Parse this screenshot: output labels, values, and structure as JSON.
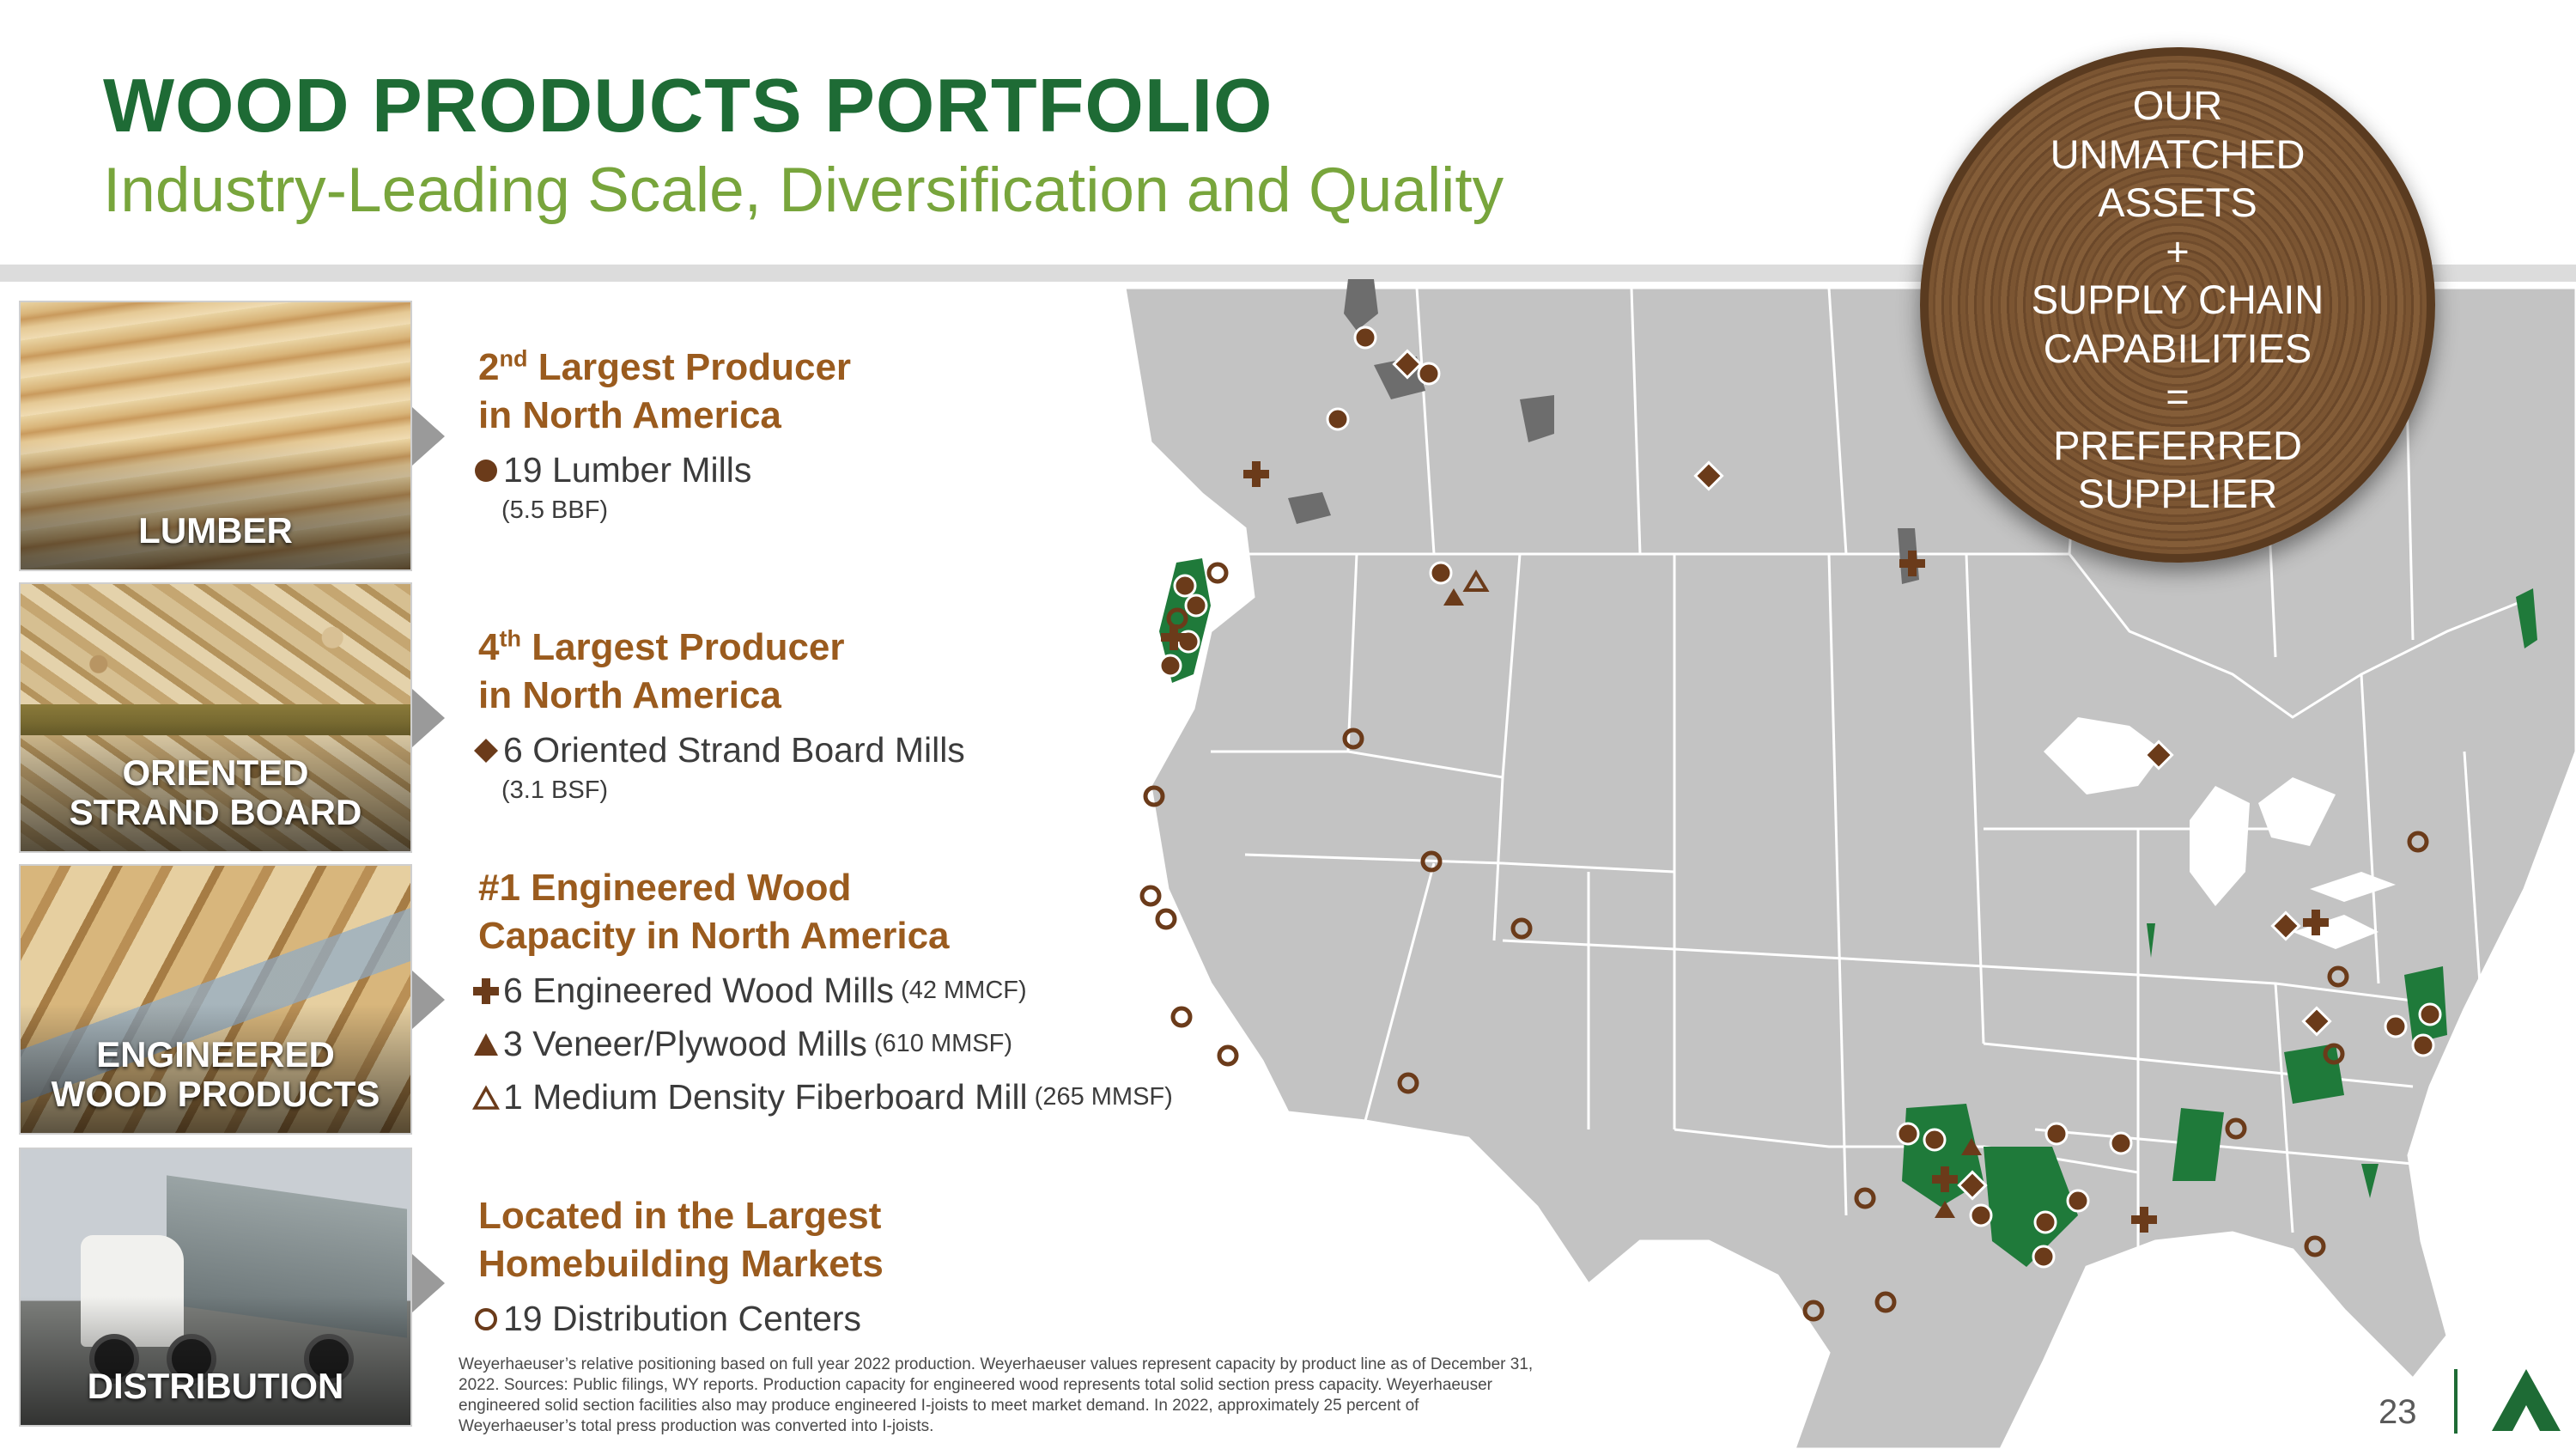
{
  "header": {
    "title": "WOOD PRODUCTS PORTFOLIO",
    "subtitle": "Industry-Leading Scale, Diversification and Quality"
  },
  "callout": {
    "lines": [
      "OUR",
      "UNMATCHED",
      "ASSETS",
      "+",
      "SUPPLY CHAIN",
      "CAPABILITIES",
      "=",
      "PREFERRED",
      "SUPPLIER"
    ]
  },
  "products": {
    "lumber": {
      "photo_label": "LUMBER",
      "heading_rank": "2",
      "heading_suffix": "nd",
      "heading_rest": " Largest Producer",
      "heading_line2": "in North America",
      "item": "19 Lumber Mills",
      "detail": "(5.5 BBF)"
    },
    "osb": {
      "photo_label_1": "ORIENTED",
      "photo_label_2": "STRAND BOARD",
      "heading_rank": "4",
      "heading_suffix": "th",
      "heading_rest": " Largest Producer",
      "heading_line2": "in North America",
      "item": "6 Oriented Strand Board Mills",
      "detail": "(3.1 BSF)"
    },
    "ewp": {
      "photo_label_1": "ENGINEERED",
      "photo_label_2": "WOOD PRODUCTS",
      "heading_line1": "#1 Engineered Wood",
      "heading_line2": "Capacity in North America",
      "items": [
        {
          "text": "6 Engineered Wood Mills",
          "detail": "(42 MMCF)",
          "icon": "cross-icon"
        },
        {
          "text": "3 Veneer/Plywood Mills",
          "detail": "(610 MMSF)",
          "icon": "filled-triangle-icon"
        },
        {
          "text": "1 Medium Density Fiberboard Mill",
          "detail": "(265 MMSF)",
          "icon": "open-triangle-icon"
        }
      ]
    },
    "distribution": {
      "photo_label": "DISTRIBUTION",
      "heading_line1": "Located in the Largest",
      "heading_line2": "Homebuilding Markets",
      "item": "19 Distribution Centers"
    }
  },
  "footnote": "Weyerhaeuser’s relative positioning based on full year 2022 production. Weyerhaeuser values represent capacity by product line as of December 31, 2022. Sources: Public filings, WY reports. Production capacity for engineered wood represents total solid section press capacity. Weyerhaeuser engineered solid section facilities also may produce engineered I-joists to meet market demand. In 2022, approximately 25 percent of Weyerhaeuser’s total press production was converted into I-joists.",
  "page_number": "23",
  "colors": {
    "title_green": "#1e6b35",
    "subtitle_green": "#78a53c",
    "heading_brown": "#9a5b1e",
    "marker_brown": "#6b3b1a",
    "timberland_green": "#1f7a3a",
    "map_gray": "#c3c3c3"
  }
}
